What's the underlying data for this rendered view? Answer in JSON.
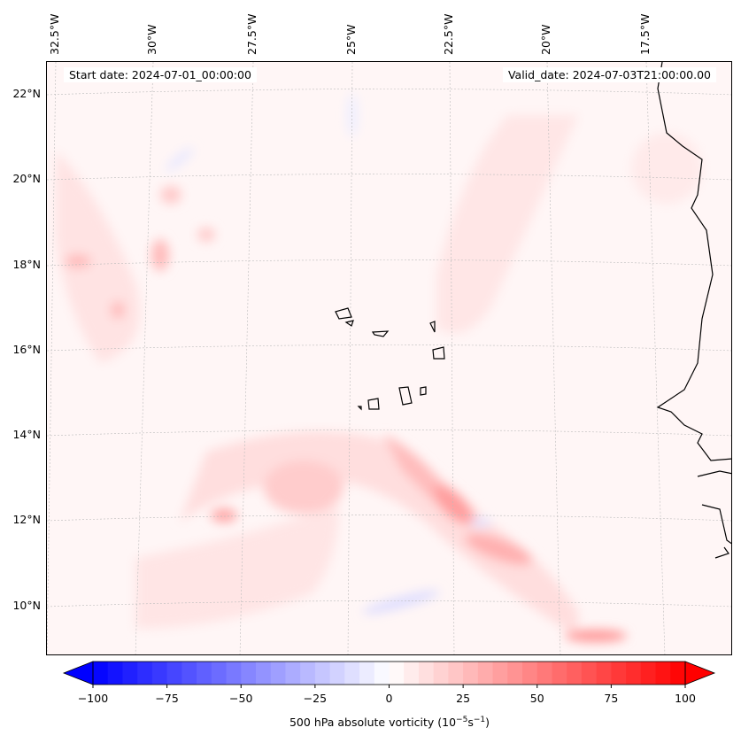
{
  "header": {
    "start_date": "Start date: 2024-07-01_00:00:00",
    "valid_date": "Valid_date: 2024-07-03T21:00:00.00"
  },
  "lon_labels": [
    "32.5°W",
    "30°W",
    "27.5°W",
    "25°W",
    "22.5°W",
    "20°W",
    "17.5°W"
  ],
  "lat_labels": [
    "22°N",
    "20°N",
    "18°N",
    "16°N",
    "14°N",
    "12°N",
    "10°N"
  ],
  "colorbar": {
    "min": -100,
    "max": 100,
    "step": 5,
    "ticks": [
      "−100",
      "−75",
      "−50",
      "−25",
      "0",
      "25",
      "50",
      "75",
      "100"
    ],
    "label_prefix": "500 hPa absolute vorticity (10",
    "label_exp1": "−5",
    "label_mid": "s",
    "label_exp2": "−1",
    "label_suffix": ")",
    "low_color": "#0000ff",
    "mid_color": "#ffffff",
    "high_color": "#ff0000"
  }
}
